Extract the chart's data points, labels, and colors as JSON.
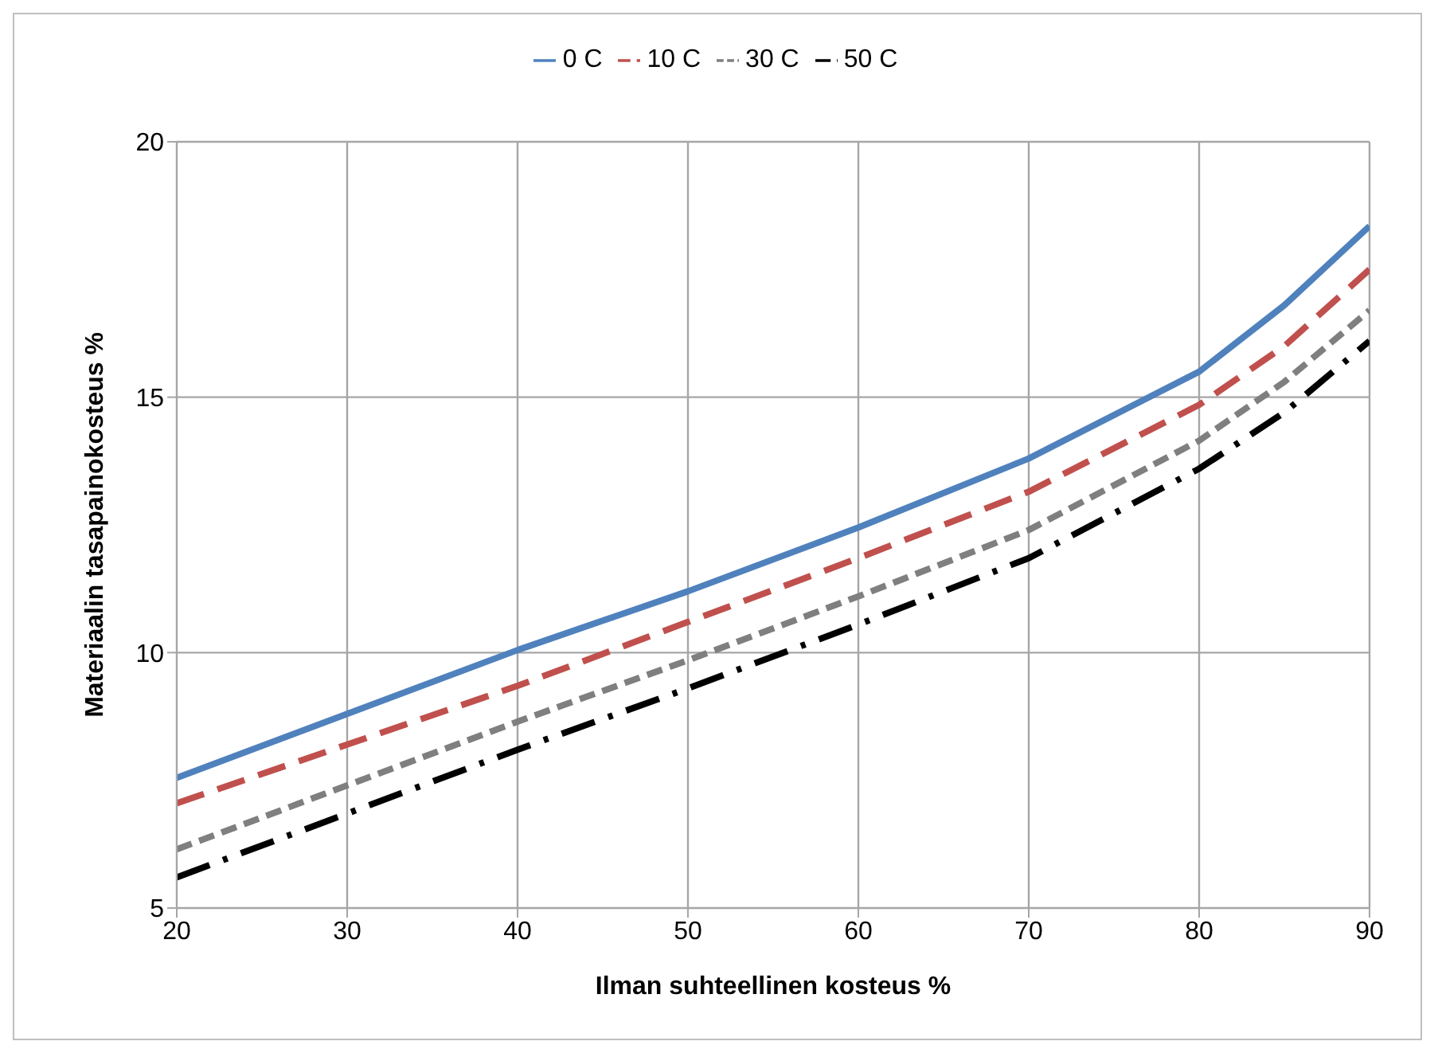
{
  "chart_data": {
    "type": "line",
    "xlabel": "Ilman suhteellinen kosteus %",
    "ylabel": "Materiaalin tasapainokosteus  %",
    "x": [
      20,
      30,
      40,
      50,
      60,
      70,
      80,
      85,
      90
    ],
    "series": [
      {
        "name": "0 C",
        "color": "#4f81bd",
        "line_style": "solid",
        "values": [
          7.55,
          8.8,
          10.05,
          11.2,
          12.45,
          13.8,
          15.5,
          16.8,
          18.35
        ]
      },
      {
        "name": "10 C",
        "color": "#c0504d",
        "line_style": "dashed",
        "values": [
          7.05,
          8.2,
          9.35,
          10.6,
          11.85,
          13.15,
          14.85,
          16.0,
          17.5
        ]
      },
      {
        "name": "30 C",
        "color": "#7f7f7f",
        "line_style": "dashed",
        "values": [
          6.15,
          7.4,
          8.65,
          9.85,
          11.1,
          12.4,
          14.15,
          15.3,
          16.7
        ]
      },
      {
        "name": "50 C",
        "color": "#000000",
        "line_style": "dashed",
        "values": [
          5.6,
          6.85,
          8.1,
          9.3,
          10.55,
          11.85,
          13.6,
          14.7,
          16.1
        ]
      }
    ],
    "xlim": [
      20,
      90
    ],
    "xticks": [
      20,
      30,
      40,
      50,
      60,
      70,
      80,
      90
    ],
    "ylim": [
      5,
      20
    ],
    "yticks": [
      5,
      10,
      15,
      20
    ],
    "grid": true,
    "legend": "top",
    "marker": "none"
  }
}
